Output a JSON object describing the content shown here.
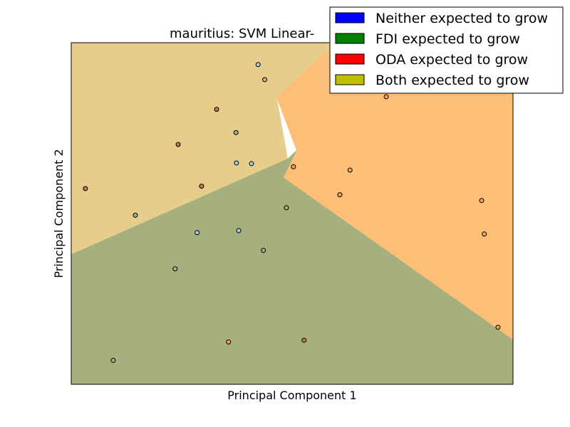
{
  "chart_data": {
    "type": "scatter",
    "title": "mauritius: SVM Linear-",
    "xlabel": "Principal Component 1",
    "ylabel": "Principal Component 2",
    "xlim": [
      0,
      100
    ],
    "ylim": [
      0,
      100
    ],
    "ticks_visible": false,
    "grid": false,
    "legend_placement": "top-right",
    "classes": [
      {
        "key": "neither",
        "name": "Neither expected to grow",
        "color": "#0000ff",
        "region_color": "#a5b07e",
        "point_color": "#a6cee3"
      },
      {
        "key": "fdi",
        "name": "FDI expected to grow",
        "color": "#008000",
        "region_color": "#a5b07e",
        "point_color": "#a5b07e"
      },
      {
        "key": "oda",
        "name": "ODA expected to grow",
        "color": "#ff0000",
        "region_color": "#fdbf78",
        "point_color": "#f4a259"
      },
      {
        "key": "both",
        "name": "Both expected to grow",
        "color": "#bfbf00",
        "region_color": "#e7cd8c",
        "point_color": "#c8764a"
      }
    ],
    "regions": [
      {
        "class": "both",
        "polygon": [
          [
            0,
            38
          ],
          [
            0,
            100
          ],
          [
            60,
            100
          ],
          [
            46.5,
            84
          ],
          [
            49,
            66
          ]
        ]
      },
      {
        "class": "oda",
        "polygon": [
          [
            46.5,
            84
          ],
          [
            60,
            100
          ],
          [
            100,
            100
          ],
          [
            100,
            13
          ],
          [
            48,
            60.5
          ],
          [
            51,
            68.5
          ]
        ]
      },
      {
        "class": "fdi",
        "polygon": [
          [
            0,
            0
          ],
          [
            0,
            38
          ],
          [
            49,
            66
          ],
          [
            51,
            68.5
          ],
          [
            48,
            60.5
          ],
          [
            100,
            13
          ],
          [
            100,
            0
          ]
        ]
      }
    ],
    "points": [
      {
        "x": 42.3,
        "y": 93.6,
        "class": "neither"
      },
      {
        "x": 43.8,
        "y": 89.2,
        "class": "oda"
      },
      {
        "x": 32.9,
        "y": 80.5,
        "class": "both"
      },
      {
        "x": 71.3,
        "y": 84.2,
        "class": "oda"
      },
      {
        "x": 37.3,
        "y": 73.7,
        "class": "fdi"
      },
      {
        "x": 24.2,
        "y": 70.2,
        "class": "both"
      },
      {
        "x": 37.4,
        "y": 64.8,
        "class": "neither"
      },
      {
        "x": 40.8,
        "y": 64.6,
        "class": "neither"
      },
      {
        "x": 63.1,
        "y": 62.7,
        "class": "oda"
      },
      {
        "x": 50.3,
        "y": 63.7,
        "class": "oda"
      },
      {
        "x": 3.2,
        "y": 57.3,
        "class": "both"
      },
      {
        "x": 29.5,
        "y": 58.0,
        "class": "both"
      },
      {
        "x": 60.8,
        "y": 55.5,
        "class": "oda"
      },
      {
        "x": 48.7,
        "y": 51.7,
        "class": "fdi"
      },
      {
        "x": 14.5,
        "y": 49.5,
        "class": "fdi"
      },
      {
        "x": 92.9,
        "y": 53.8,
        "class": "oda"
      },
      {
        "x": 28.5,
        "y": 44.4,
        "class": "neither"
      },
      {
        "x": 37.9,
        "y": 45.0,
        "class": "neither"
      },
      {
        "x": 93.5,
        "y": 44.0,
        "class": "oda"
      },
      {
        "x": 43.5,
        "y": 39.2,
        "class": "fdi"
      },
      {
        "x": 23.5,
        "y": 33.8,
        "class": "fdi"
      },
      {
        "x": 96.6,
        "y": 16.7,
        "class": "oda"
      },
      {
        "x": 35.6,
        "y": 12.4,
        "class": "oda"
      },
      {
        "x": 52.7,
        "y": 12.9,
        "class": "both"
      },
      {
        "x": 9.5,
        "y": 7.0,
        "class": "fdi"
      }
    ]
  }
}
